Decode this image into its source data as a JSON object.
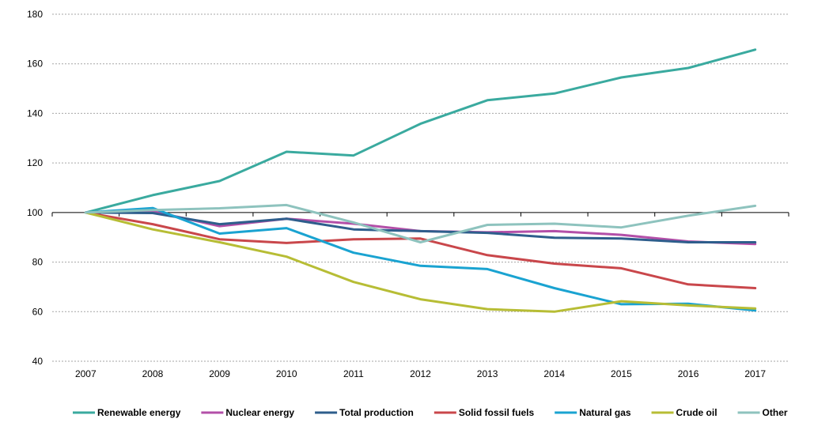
{
  "chart_data": {
    "type": "line",
    "title": "",
    "xlabel": "",
    "ylabel": "",
    "x": [
      "2007",
      "2008",
      "2009",
      "2010",
      "2011",
      "2012",
      "2013",
      "2014",
      "2015",
      "2016",
      "2017"
    ],
    "ylim": [
      40,
      180
    ],
    "yticks": [
      40,
      60,
      80,
      100,
      120,
      140,
      160,
      180
    ],
    "grid": true,
    "legend_position": "bottom",
    "series": [
      {
        "name": "Renewable energy",
        "color": "#3aaa9f",
        "values": [
          100,
          107,
          112.7,
          124.5,
          123,
          135.8,
          145.3,
          148,
          154.5,
          158.3,
          165.7
        ]
      },
      {
        "name": "Nuclear energy",
        "color": "#b34fa8",
        "values": [
          100,
          100.5,
          94.5,
          97.5,
          95.5,
          92.5,
          92,
          92.5,
          91,
          88.3,
          87.3
        ]
      },
      {
        "name": "Total production",
        "color": "#2e5e8c",
        "values": [
          100,
          99.8,
          95.3,
          97.5,
          93.2,
          92.5,
          91.8,
          89.8,
          89.5,
          88,
          88
        ]
      },
      {
        "name": "Solid fossil fuels",
        "color": "#c9474b",
        "values": [
          100,
          95.3,
          89.2,
          87.7,
          89.2,
          89.5,
          82.8,
          79.4,
          77.5,
          71,
          69.5
        ]
      },
      {
        "name": "Natural gas",
        "color": "#1aa3d1",
        "values": [
          100,
          101.8,
          91.5,
          93.7,
          83.8,
          78.5,
          77.2,
          69.5,
          63,
          63.2,
          60.5
        ]
      },
      {
        "name": "Crude oil",
        "color": "#b7bd35",
        "values": [
          100,
          93.2,
          88,
          82.2,
          72,
          65,
          61,
          60,
          64.2,
          62.5,
          61.3
        ]
      },
      {
        "name": "Other",
        "color": "#8ec3be",
        "values": [
          100,
          101,
          101.7,
          103,
          96,
          88,
          95,
          95.5,
          94,
          98.7,
          102.7
        ]
      }
    ]
  }
}
